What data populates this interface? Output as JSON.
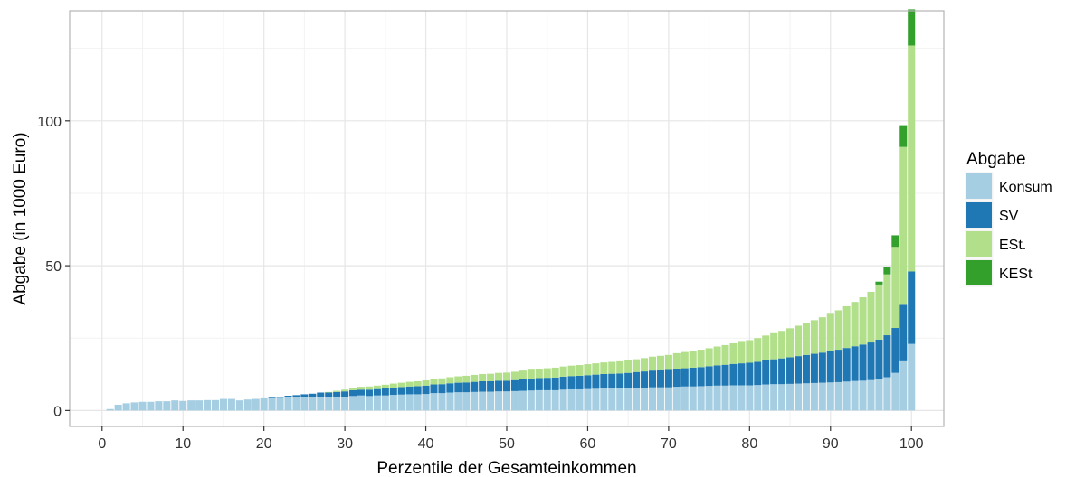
{
  "chart_data": {
    "type": "bar",
    "stacked": true,
    "xlabel": "Perzentile der Gesamteinkommen",
    "ylabel": "Abgabe (in 1000 Euro)",
    "xlim": [
      -4,
      104
    ],
    "ylim": [
      -5.5,
      138
    ],
    "x_ticks": [
      0,
      10,
      20,
      30,
      40,
      50,
      60,
      70,
      80,
      90,
      100
    ],
    "y_ticks": [
      0,
      50,
      100
    ],
    "grid": true,
    "legend": {
      "title": "Abgabe",
      "position": "right"
    },
    "x": [
      1,
      2,
      3,
      4,
      5,
      6,
      7,
      8,
      9,
      10,
      11,
      12,
      13,
      14,
      15,
      16,
      17,
      18,
      19,
      20,
      21,
      22,
      23,
      24,
      25,
      26,
      27,
      28,
      29,
      30,
      31,
      32,
      33,
      34,
      35,
      36,
      37,
      38,
      39,
      40,
      41,
      42,
      43,
      44,
      45,
      46,
      47,
      48,
      49,
      50,
      51,
      52,
      53,
      54,
      55,
      56,
      57,
      58,
      59,
      60,
      61,
      62,
      63,
      64,
      65,
      66,
      67,
      68,
      69,
      70,
      71,
      72,
      73,
      74,
      75,
      76,
      77,
      78,
      79,
      80,
      81,
      82,
      83,
      84,
      85,
      86,
      87,
      88,
      89,
      90,
      91,
      92,
      93,
      94,
      95,
      96,
      97,
      98,
      99,
      100
    ],
    "series": [
      {
        "name": "Konsum",
        "color": "#a6cee3",
        "values": [
          0.5,
          2.0,
          2.5,
          2.8,
          3.0,
          3.0,
          3.2,
          3.2,
          3.5,
          3.3,
          3.5,
          3.5,
          3.6,
          3.6,
          4.0,
          4.0,
          3.5,
          3.8,
          4.0,
          4.2,
          4.3,
          4.4,
          4.5,
          4.5,
          4.6,
          4.6,
          4.8,
          4.7,
          4.8,
          4.8,
          5.0,
          5.2,
          5.0,
          5.2,
          5.2,
          5.4,
          5.5,
          5.6,
          5.6,
          5.7,
          6.0,
          6.0,
          6.2,
          6.3,
          6.3,
          6.4,
          6.5,
          6.5,
          6.6,
          6.6,
          6.7,
          6.8,
          6.9,
          7.0,
          7.0,
          7.0,
          7.2,
          7.3,
          7.3,
          7.4,
          7.5,
          7.6,
          7.6,
          7.6,
          7.7,
          7.8,
          7.9,
          8.0,
          8.0,
          8.0,
          8.2,
          8.3,
          8.3,
          8.4,
          8.5,
          8.6,
          8.6,
          8.7,
          8.7,
          8.7,
          8.8,
          9.0,
          9.1,
          9.1,
          9.2,
          9.3,
          9.4,
          9.5,
          9.6,
          9.7,
          9.8,
          10.0,
          10.2,
          10.3,
          10.5,
          11.0,
          11.5,
          13.0,
          17.0,
          23.0
        ]
      },
      {
        "name": "SV",
        "color": "#1f78b4",
        "values": [
          0,
          0,
          0,
          0,
          0,
          0,
          0,
          0,
          0,
          0,
          0,
          0,
          0,
          0,
          0,
          0,
          0,
          0,
          0,
          0,
          0.3,
          0.3,
          0.6,
          0.8,
          1.0,
          1.2,
          1.4,
          1.5,
          1.6,
          1.8,
          2.0,
          2.0,
          2.2,
          2.2,
          2.4,
          2.5,
          2.6,
          2.7,
          2.8,
          2.9,
          3.0,
          3.1,
          3.2,
          3.3,
          3.4,
          3.5,
          3.6,
          3.6,
          3.7,
          3.7,
          3.8,
          4.0,
          4.1,
          4.2,
          4.3,
          4.4,
          4.5,
          4.6,
          4.7,
          4.8,
          4.9,
          5.0,
          5.1,
          5.2,
          5.3,
          5.5,
          5.6,
          5.8,
          5.9,
          6.0,
          6.2,
          6.3,
          6.5,
          6.6,
          6.8,
          7.0,
          7.2,
          7.4,
          7.6,
          7.8,
          8.0,
          8.3,
          8.6,
          8.9,
          9.2,
          9.5,
          9.8,
          10.1,
          10.4,
          10.8,
          11.2,
          11.6,
          12.0,
          12.5,
          13.0,
          13.5,
          14.5,
          15.5,
          19.5,
          25.0
        ]
      },
      {
        "name": "ESt.",
        "color": "#b2df8a",
        "values": [
          0,
          0,
          0,
          0,
          0,
          0,
          0,
          0,
          0,
          0,
          0,
          0,
          0,
          0,
          0,
          0,
          0,
          0,
          0,
          0,
          0,
          0,
          0,
          0,
          0,
          0,
          0,
          0.2,
          0.4,
          0.6,
          0.8,
          1.0,
          1.1,
          1.2,
          1.3,
          1.4,
          1.5,
          1.6,
          1.7,
          1.8,
          1.9,
          2.0,
          2.1,
          2.2,
          2.3,
          2.4,
          2.5,
          2.6,
          2.7,
          2.8,
          2.9,
          3.0,
          3.1,
          3.2,
          3.3,
          3.4,
          3.5,
          3.6,
          3.7,
          3.8,
          3.9,
          4.0,
          4.1,
          4.2,
          4.3,
          4.4,
          4.6,
          4.8,
          5.0,
          5.2,
          5.4,
          5.6,
          5.8,
          6.0,
          6.2,
          6.5,
          6.8,
          7.1,
          7.4,
          7.8,
          8.2,
          8.6,
          9.0,
          9.5,
          10.0,
          10.5,
          11.0,
          11.6,
          12.2,
          12.9,
          13.6,
          14.4,
          15.3,
          16.3,
          17.5,
          19.0,
          21.0,
          28.0,
          54.5,
          78.0
        ]
      },
      {
        "name": "KESt",
        "color": "#33a02c",
        "values": [
          0,
          0,
          0,
          0,
          0,
          0,
          0,
          0,
          0,
          0,
          0,
          0,
          0,
          0,
          0,
          0,
          0,
          0,
          0,
          0,
          0,
          0,
          0,
          0,
          0,
          0,
          0,
          0,
          0,
          0,
          0,
          0,
          0,
          0,
          0,
          0,
          0,
          0,
          0,
          0,
          0,
          0,
          0,
          0,
          0,
          0,
          0,
          0,
          0,
          0,
          0,
          0,
          0,
          0,
          0,
          0,
          0,
          0,
          0,
          0,
          0,
          0,
          0,
          0,
          0,
          0,
          0,
          0,
          0,
          0,
          0,
          0,
          0,
          0,
          0,
          0,
          0,
          0,
          0,
          0,
          0,
          0,
          0,
          0,
          0,
          0,
          0,
          0,
          0,
          0,
          0,
          0,
          0,
          0,
          0,
          1.0,
          2.5,
          4.0,
          7.5,
          12.5
        ]
      }
    ]
  }
}
